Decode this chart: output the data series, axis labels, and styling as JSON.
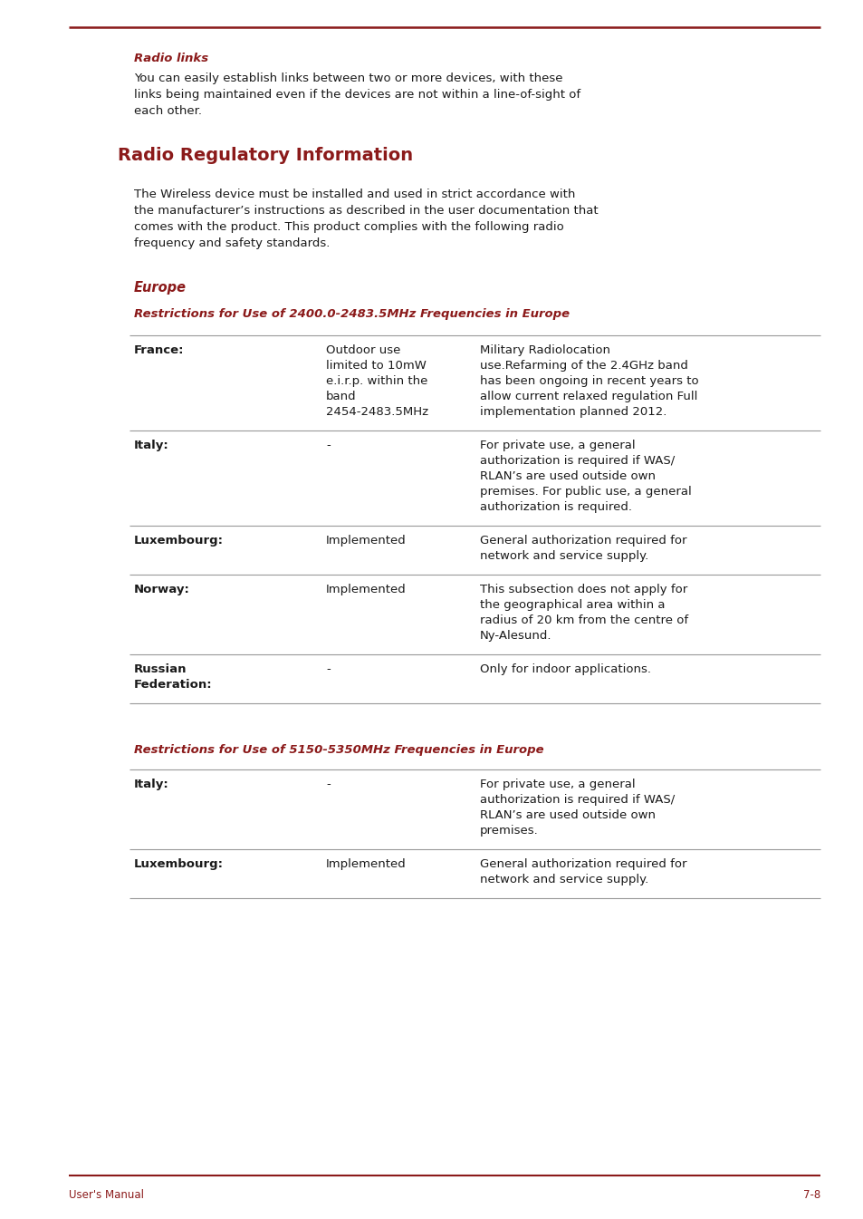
{
  "bg_color": "#ffffff",
  "accent_color": "#8B1A1A",
  "text_color": "#1a1a1a",
  "table_rule_color": "#999999",
  "top_rule_color": "#8B1A1A",
  "radio_links_label": "Radio links",
  "radio_links_lines": [
    "You can easily establish links between two or more devices, with these",
    "links being maintained even if the devices are not within a line-of-sight of",
    "each other."
  ],
  "section_title": "Radio Regulatory Information",
  "intro_lines": [
    "The Wireless device must be installed and used in strict accordance with",
    "the manufacturer’s instructions as described in the user documentation that",
    "comes with the product. This product complies with the following radio",
    "frequency and safety standards."
  ],
  "europe_label": "Europe",
  "table1_title": "Restrictions for Use of 2400.0-2483.5MHz Frequencies in Europe",
  "table1_rows": [
    {
      "col1": [
        "France:"
      ],
      "col2": [
        "Outdoor use",
        "limited to 10mW",
        "e.i.r.p. within the",
        "band",
        "2454-2483.5MHz"
      ],
      "col3": [
        "Military Radiolocation",
        "use.Refarming of the 2.4GHz band",
        "has been ongoing in recent years to",
        "allow current relaxed regulation Full",
        "implementation planned 2012."
      ]
    },
    {
      "col1": [
        "Italy:"
      ],
      "col2": [
        "-"
      ],
      "col3": [
        "For private use, a general",
        "authorization is required if WAS/",
        "RLAN’s are used outside own",
        "premises. For public use, a general",
        "authorization is required."
      ]
    },
    {
      "col1": [
        "Luxembourg:"
      ],
      "col2": [
        "Implemented"
      ],
      "col3": [
        "General authorization required for",
        "network and service supply."
      ]
    },
    {
      "col1": [
        "Norway:"
      ],
      "col2": [
        "Implemented"
      ],
      "col3": [
        "This subsection does not apply for",
        "the geographical area within a",
        "radius of 20 km from the centre of",
        "Ny-Alesund."
      ]
    },
    {
      "col1": [
        "Russian",
        "Federation:"
      ],
      "col2": [
        "-"
      ],
      "col3": [
        "Only for indoor applications."
      ]
    }
  ],
  "table2_title": "Restrictions for Use of 5150-5350MHz Frequencies in Europe",
  "table2_rows": [
    {
      "col1": [
        "Italy:"
      ],
      "col2": [
        "-"
      ],
      "col3": [
        "For private use, a general",
        "authorization is required if WAS/",
        "RLAN’s are used outside own",
        "premises."
      ]
    },
    {
      "col1": [
        "Luxembourg:"
      ],
      "col2": [
        "Implemented"
      ],
      "col3": [
        "General authorization required for",
        "network and service supply."
      ]
    }
  ],
  "footer_left": "User's Manual",
  "footer_right": "7-8"
}
